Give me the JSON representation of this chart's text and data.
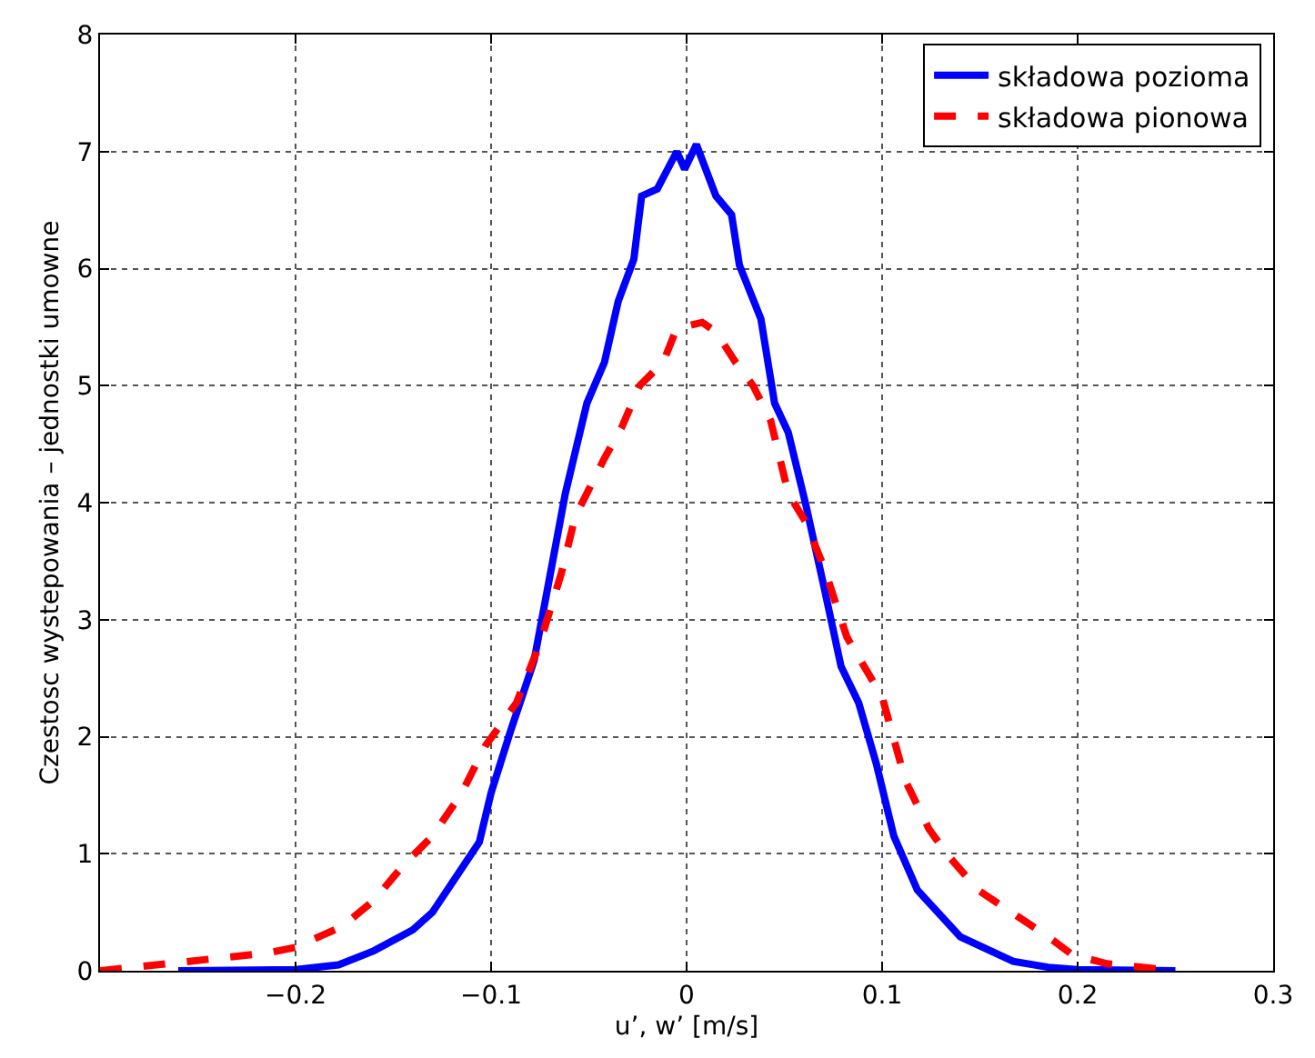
{
  "chart_data": {
    "type": "line",
    "xlabel": "u’, w’ [m/s]",
    "ylabel": "Czestosc wystepowania – jednostki umowne",
    "xlim": [
      -0.3,
      0.3
    ],
    "xticks": [
      {
        "value": -0.2,
        "label": "−0.2"
      },
      {
        "value": -0.1,
        "label": "−0.1"
      },
      0,
      0.1,
      0.2,
      0.3
    ],
    "ylim": [
      0,
      8
    ],
    "yticks": [
      0,
      1,
      2,
      3,
      4,
      5,
      6,
      7,
      8
    ],
    "grid": true,
    "legend": "top right",
    "series": [
      {
        "name": "składowa pozioma",
        "color": "#0000ff",
        "line_style": "solid",
        "x": [
          -0.26,
          -0.2,
          -0.178,
          -0.16,
          -0.14,
          -0.13,
          -0.12,
          -0.106,
          -0.1,
          -0.09,
          -0.078,
          -0.062,
          -0.051,
          -0.042,
          -0.035,
          -0.027,
          -0.023,
          -0.015,
          -0.005,
          -0.001,
          0.005,
          0.015,
          0.023,
          0.027,
          0.038,
          0.045,
          0.052,
          0.061,
          0.07,
          0.079,
          0.088,
          0.097,
          0.106,
          0.118,
          0.14,
          0.167,
          0.185,
          0.2,
          0.25
        ],
        "values": [
          0,
          0.01,
          0.05,
          0.17,
          0.35,
          0.5,
          0.75,
          1.1,
          1.52,
          2.05,
          2.65,
          4.08,
          4.85,
          5.2,
          5.72,
          6.08,
          6.62,
          6.68,
          7.0,
          6.85,
          7.06,
          6.62,
          6.46,
          6.03,
          5.57,
          4.85,
          4.6,
          3.98,
          3.3,
          2.6,
          2.29,
          1.77,
          1.15,
          0.69,
          0.29,
          0.08,
          0.03,
          0.01,
          0
        ]
      },
      {
        "name": "składowa pionowa",
        "color": "#ff0000",
        "line_style": "dashed",
        "x": [
          -0.3,
          -0.266,
          -0.215,
          -0.2,
          -0.176,
          -0.16,
          -0.145,
          -0.13,
          -0.115,
          -0.103,
          -0.087,
          -0.075,
          -0.064,
          -0.057,
          -0.042,
          -0.033,
          -0.024,
          -0.012,
          -0.005,
          0.008,
          0.015,
          0.025,
          0.034,
          0.043,
          0.052,
          0.061,
          0.07,
          0.082,
          0.1,
          0.112,
          0.124,
          0.133,
          0.149,
          0.167,
          0.185,
          0.197,
          0.215,
          0.25
        ],
        "values": [
          0,
          0.06,
          0.15,
          0.2,
          0.38,
          0.6,
          0.9,
          1.15,
          1.52,
          1.92,
          2.29,
          2.8,
          3.4,
          3.88,
          4.38,
          4.65,
          5.0,
          5.2,
          5.49,
          5.54,
          5.46,
          5.2,
          5.0,
          4.7,
          4.08,
          3.83,
          3.46,
          2.85,
          2.34,
          1.62,
          1.21,
          1.0,
          0.69,
          0.49,
          0.29,
          0.14,
          0.06,
          0
        ]
      }
    ]
  }
}
